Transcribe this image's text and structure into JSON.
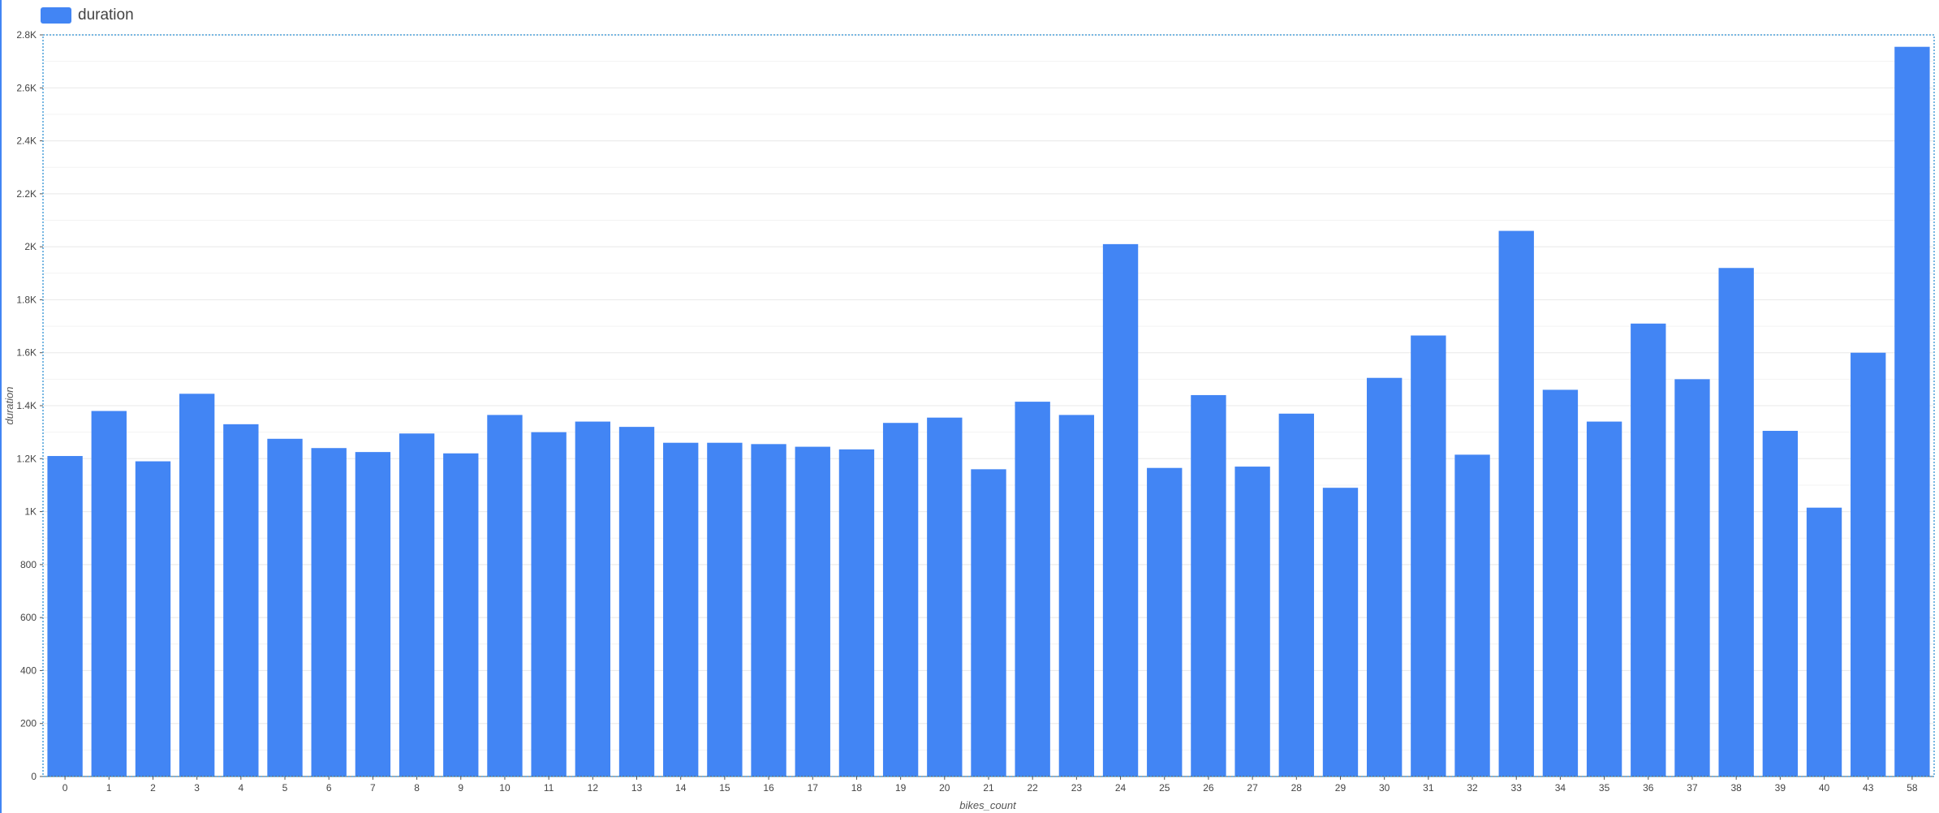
{
  "legend": {
    "label": "duration",
    "color": "#4285f4"
  },
  "colors": {
    "bar": "#4285f4",
    "grid": "#e8e8e8",
    "axis": "#555555",
    "frame": "#4a9fd8",
    "tick_text": "#444444"
  },
  "chart_data": {
    "type": "bar",
    "xlabel": "bikes_count",
    "ylabel": "duration",
    "ylim": [
      0,
      2800
    ],
    "yticks": [
      0,
      200,
      400,
      600,
      800,
      1000,
      1200,
      1400,
      1600,
      1800,
      2000,
      2200,
      2400,
      2600,
      2800
    ],
    "ytick_labels": [
      "0",
      "200",
      "400",
      "600",
      "800",
      "1K",
      "1.2K",
      "1.4K",
      "1.6K",
      "1.8K",
      "2K",
      "2.2K",
      "2.4K",
      "2.6K",
      "2.8K"
    ],
    "grid": true,
    "legend_position": "top-left",
    "categories": [
      "0",
      "1",
      "2",
      "3",
      "4",
      "5",
      "6",
      "7",
      "8",
      "9",
      "10",
      "11",
      "12",
      "13",
      "14",
      "15",
      "16",
      "17",
      "18",
      "19",
      "20",
      "21",
      "22",
      "23",
      "24",
      "25",
      "26",
      "27",
      "28",
      "29",
      "30",
      "31",
      "32",
      "33",
      "34",
      "35",
      "36",
      "37",
      "38",
      "39",
      "40",
      "43",
      "58"
    ],
    "series": [
      {
        "name": "duration",
        "values": [
          1210,
          1380,
          1190,
          1445,
          1330,
          1275,
          1240,
          1225,
          1295,
          1220,
          1365,
          1300,
          1340,
          1320,
          1260,
          1260,
          1255,
          1245,
          1235,
          1335,
          1355,
          1160,
          1415,
          1365,
          2010,
          1165,
          1440,
          1170,
          1370,
          1090,
          1505,
          1665,
          1215,
          2060,
          1460,
          1340,
          1710,
          1500,
          1920,
          1305,
          1015,
          1600,
          2755
        ]
      }
    ]
  }
}
